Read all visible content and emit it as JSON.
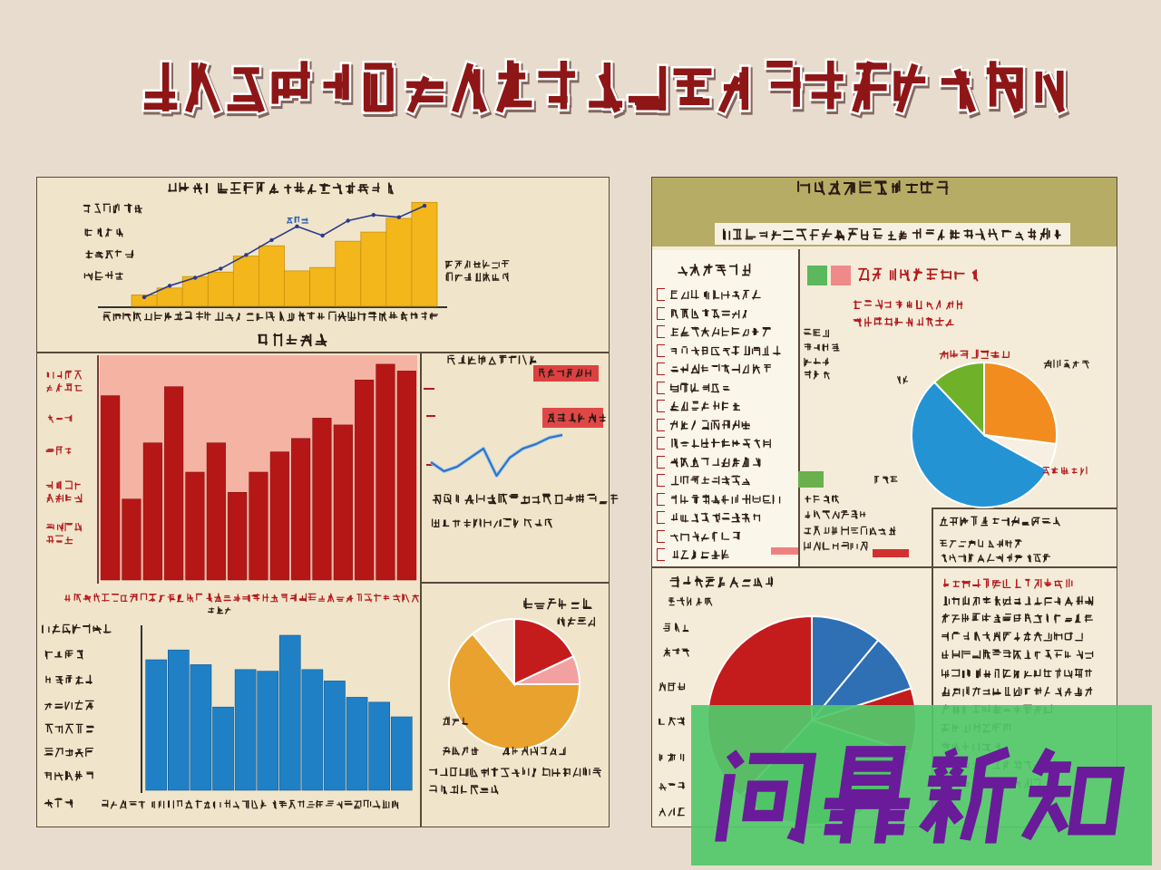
{
  "background_color": "#e7dccd",
  "watermark": {
    "text": "问鼎新知",
    "text_color": "#6a1b9a",
    "bg_color": "#52c86a"
  },
  "chart_data": [
    {
      "type": "bar",
      "series": [
        {
          "type": "bar",
          "values": [
            10,
            16,
            26,
            30,
            44,
            53,
            31,
            34,
            57,
            65,
            77,
            91
          ]
        },
        {
          "type": "line",
          "values": [
            8,
            18,
            25,
            33,
            45,
            58,
            70,
            62,
            75,
            80,
            78,
            88
          ]
        }
      ],
      "ylim": [
        0,
        100
      ],
      "colors": [
        "#f3b61b",
        "#2b3a8a"
      ]
    },
    {
      "type": "bar",
      "values": [
        82,
        36,
        61,
        86,
        48,
        61,
        39,
        48,
        57,
        63,
        72,
        69,
        89,
        96,
        93
      ],
      "ylim": [
        0,
        100
      ],
      "colors": [
        "#b51717"
      ],
      "plot_background": "#f5b3a3"
    },
    {
      "type": "line",
      "values": [
        36,
        16,
        26,
        46,
        66,
        6,
        46,
        66,
        76,
        90,
        96
      ],
      "ylim": [
        0,
        100
      ],
      "colors": [
        "#2b72c2"
      ]
    },
    {
      "type": "bar",
      "values": [
        80,
        86,
        77,
        51,
        74,
        73,
        95,
        74,
        67,
        57,
        54,
        45
      ],
      "ylim": [
        0,
        100
      ],
      "colors": [
        "#1f80c6"
      ]
    },
    {
      "type": "pie",
      "values": [
        18,
        7,
        64,
        11
      ],
      "colors": [
        "#c41c1c",
        "#f2a0a0",
        "#e9a22e",
        "#f5ead8"
      ]
    },
    {
      "type": "pie",
      "values": [
        27,
        6,
        55,
        12
      ],
      "colors": [
        "#f28c1e",
        "#f6efe2",
        "#2393d4",
        "#6fb22a"
      ]
    },
    {
      "type": "pie",
      "values": [
        11,
        9,
        10,
        32,
        38
      ],
      "colors": [
        "#2f6fb4",
        "#2f6fb4",
        "#c41c1c",
        "#3aa048",
        "#c41c1c"
      ]
    }
  ]
}
